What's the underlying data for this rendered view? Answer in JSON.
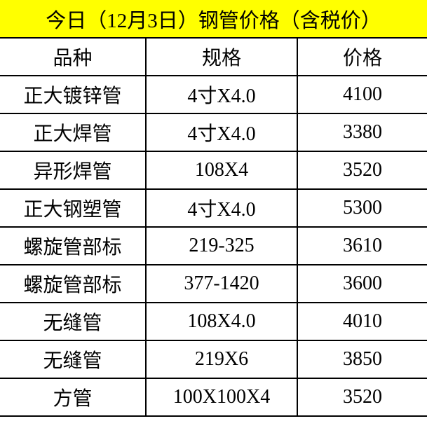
{
  "title": "今日（12月3日）钢管价格（含税价）",
  "header_bg_color": "#ffff00",
  "columns": [
    "品种",
    "规格",
    "价格"
  ],
  "rows": [
    [
      "正大镀锌管",
      "4寸X4.0",
      "4100"
    ],
    [
      "正大焊管",
      "4寸X4.0",
      "3380"
    ],
    [
      "异形焊管",
      "108X4",
      "3520"
    ],
    [
      "正大钢塑管",
      "4寸X4.0",
      "5300"
    ],
    [
      "螺旋管部标",
      "219-325",
      "3610"
    ],
    [
      "螺旋管部标",
      "377-1420",
      "3600"
    ],
    [
      "无缝管",
      "108X4.0",
      "4010"
    ],
    [
      "无缝管",
      "219X6",
      "3850"
    ],
    [
      "方管",
      "100X100X4",
      "3520"
    ]
  ]
}
